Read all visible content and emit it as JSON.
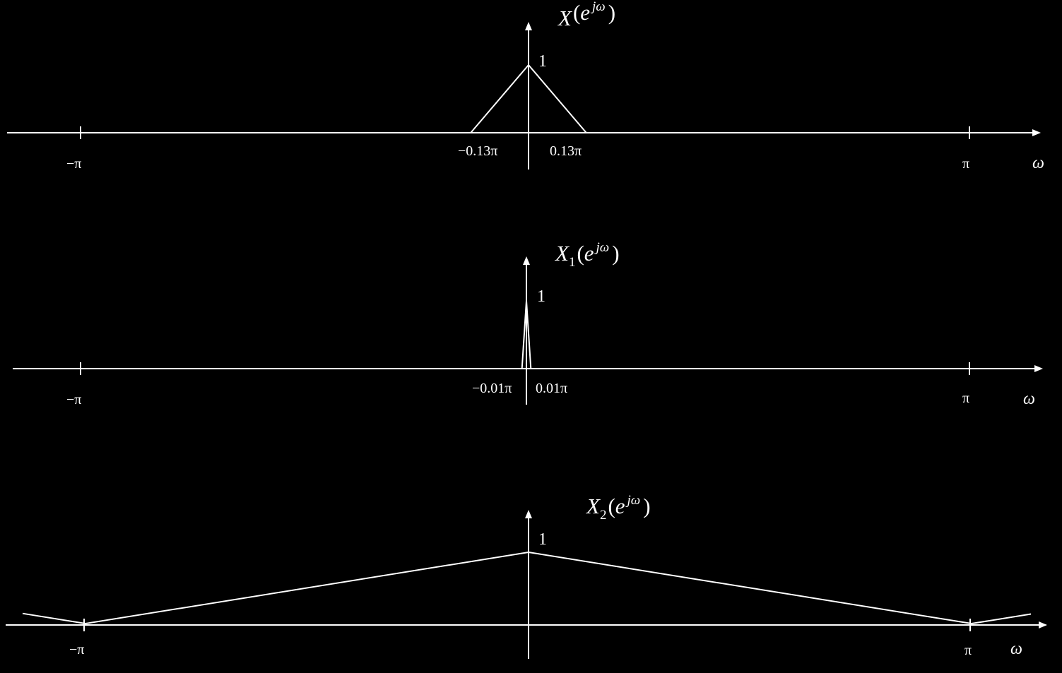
{
  "colors": {
    "background": "#000000",
    "foreground": "#ffffff"
  },
  "plots": [
    {
      "id": "x",
      "title": {
        "letter": "X",
        "subscript": "",
        "open": "(",
        "base": "e",
        "sup": "jω",
        "close": ")"
      },
      "peak_label": "1",
      "axis_label": "ω",
      "tick_labels": {
        "neg_pi": "−π",
        "pos_pi": "π"
      },
      "band_labels": {
        "neg": "−0.13π",
        "pos": "0.13π"
      },
      "shape": {
        "type": "triangle",
        "peak": 1,
        "half_width_pi": 0.13
      }
    },
    {
      "id": "x1",
      "title": {
        "letter": "X",
        "subscript": "1",
        "open": "(",
        "base": "e",
        "sup": "jω",
        "close": ")"
      },
      "peak_label": "1",
      "axis_label": "ω",
      "tick_labels": {
        "neg_pi": "−π",
        "pos_pi": "π"
      },
      "band_labels": {
        "neg": "−0.01π",
        "pos": "0.01π"
      },
      "shape": {
        "type": "triangle",
        "peak": 1,
        "half_width_pi": 0.01
      }
    },
    {
      "id": "x2",
      "title": {
        "letter": "X",
        "subscript": "2",
        "open": "(",
        "base": "e",
        "sup": "jω",
        "close": ")"
      },
      "peak_label": "1",
      "axis_label": "ω",
      "tick_labels": {
        "neg_pi": "−π",
        "pos_pi": "π"
      },
      "band_labels": {
        "neg": "",
        "pos": ""
      },
      "shape": {
        "type": "periodic-triangle",
        "peak": 1,
        "half_width_pi": 1
      }
    }
  ]
}
